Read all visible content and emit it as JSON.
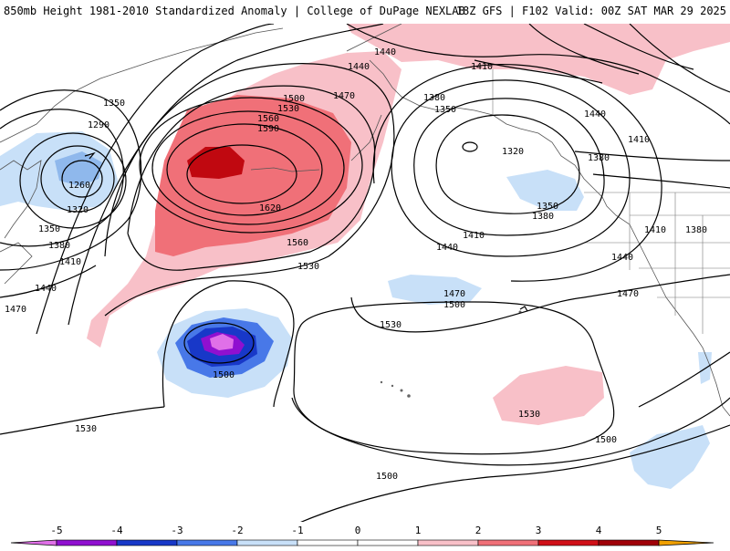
{
  "header": {
    "left_title": "850mb Height 1981-2010 Standardized Anomaly | College of DuPage NEXLAB",
    "right_title": "18Z GFS | F102 Valid: 00Z SAT MAR 29 2025"
  },
  "contour_labels": {
    "l1440_top": "1440",
    "l1410_top": "1410",
    "l1440_a": "1440",
    "l1470_a": "1470",
    "l1500_a": "1500",
    "l1530_a": "1530",
    "l1560_a": "1560",
    "l1590_a": "1590",
    "l1620": "1620",
    "l1560_b": "1560",
    "l1530_b": "1530",
    "l1350_w": "1350",
    "l1290_w": "1290",
    "l1260_w": "1260",
    "l1320_w": "1320",
    "l1350_w2": "1350",
    "l1380_w": "1380",
    "l1410_w": "1410",
    "l1440_w": "1440",
    "l1470_w": "1470",
    "l1380_n": "1380",
    "l1350_n": "1350",
    "l1320_n": "1320",
    "l1350_e": "1350",
    "l1380_e": "1380",
    "l1410_e": "1410",
    "l1440_e": "1440",
    "l1470_c": "1470",
    "l1500_c": "1500",
    "l1530_c": "1530",
    "l1500_low": "1500",
    "l1530_sw": "1530",
    "l1530_hi": "1530",
    "l1500_s": "1500",
    "l1500_se": "1500",
    "l1440_ne": "1440",
    "l1410_ne": "1410",
    "l1380_ne": "1380",
    "l1410_us": "1410",
    "l1380_us": "1380",
    "l1440_us": "1440",
    "l1470_us": "1470"
  },
  "legend": {
    "ticks": [
      "-5",
      "-4",
      "-3",
      "-2",
      "-1",
      "0",
      "1",
      "2",
      "3",
      "4",
      "5"
    ],
    "colors": [
      "#e070e8",
      "#9010d0",
      "#1838c8",
      "#4878e8",
      "#c8e0f8",
      "#ffffff",
      "#ffffff",
      "#f8c0c8",
      "#f07078",
      "#d01018",
      "#a00008",
      "#f0a000"
    ]
  }
}
